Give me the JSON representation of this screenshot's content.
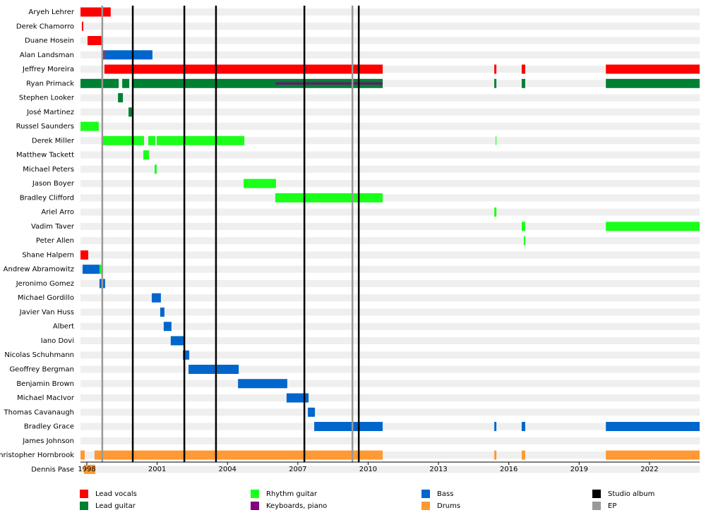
{
  "chart_data": {
    "type": "timeline",
    "categories": [
      "Aryeh Lehrer",
      "Derek Chamorro",
      "Duane Hosein",
      "Alan Landsman",
      "Jeffrey Moreira",
      "Ryan Primack",
      "Stephen Looker",
      "José Martinez",
      "Russel Saunders",
      "Derek Miller",
      "Matthew Tackett",
      "Michael Peters",
      "Jason Boyer",
      "Bradley Clifford",
      "Ariel Arro",
      "Vadim Taver",
      "Peter Allen",
      "Shane Halpern",
      "Andrew Abramowitz",
      "Jeronimo Gomez",
      "Michael Gordillo",
      "Javier Van Huss",
      "Albert",
      "Iano Dovi",
      "Nicolas Schuhmann",
      "Geoffrey Bergman",
      "Benjamin Brown",
      "Michael MacIvor",
      "Thomas Cavanaugh",
      "Bradley Grace",
      "James Johnson",
      "Christopher Hornbrook",
      "Dennis Pase"
    ],
    "series": [
      {
        "name": "Lead vocals",
        "color": "#ff0000",
        "values": [
          [
            [
              1997.73,
              1999.02
            ]
          ],
          [
            [
              1997.79,
              1997.85
            ]
          ],
          [
            [
              1998.03,
              1998.69
            ]
          ],
          [
            [
              1998.66,
              1998.75
            ]
          ],
          [
            [
              1998.75,
              2010.62
            ],
            [
              2015.38,
              2015.47
            ],
            [
              2016.55,
              2016.7
            ],
            [
              2020.14,
              2024.14
            ]
          ],
          [],
          [],
          [],
          [],
          [],
          [],
          [],
          [],
          [],
          [],
          [],
          [],
          [
            [
              1997.73,
              1998.06
            ]
          ],
          [],
          [],
          [],
          [],
          [],
          [],
          [],
          [],
          [],
          [],
          [],
          [],
          [],
          [],
          []
        ]
      },
      {
        "name": "Lead guitar",
        "color": "#008033",
        "values": [
          [],
          [],
          [],
          [],
          [],
          [
            [
              1997.73,
              1999.36
            ],
            [
              1999.51,
              1999.81
            ],
            [
              1999.96,
              2010.62
            ],
            [
              2015.38,
              2015.47
            ],
            [
              2016.55,
              2016.7
            ],
            [
              2020.14,
              2024.14
            ]
          ],
          [
            [
              1999.33,
              1999.54
            ]
          ],
          [
            [
              1999.78,
              1999.96
            ]
          ],
          [],
          [],
          [],
          [],
          [],
          [],
          [],
          [],
          [],
          [],
          [],
          [],
          [],
          [],
          [],
          [],
          [],
          [],
          [],
          [],
          [],
          [],
          [],
          [],
          []
        ]
      },
      {
        "name": "Rhythm guitar",
        "color": "#1aff1a",
        "values": [
          [],
          [],
          [],
          [],
          [],
          [],
          [],
          [],
          [
            [
              1997.73,
              1998.51
            ]
          ],
          [
            [
              1998.66,
              2000.44
            ],
            [
              2000.62,
              2000.92
            ],
            [
              2000.98,
              2004.72
            ],
            [
              2015.44,
              2015.47
            ]
          ],
          [
            [
              2000.41,
              2000.65
            ]
          ],
          [
            [
              2000.89,
              2000.98
            ]
          ],
          [
            [
              2004.69,
              2006.07
            ]
          ],
          [
            [
              2006.04,
              2010.62
            ]
          ],
          [
            [
              2015.38,
              2015.47
            ]
          ],
          [
            [
              2016.55,
              2016.7
            ],
            [
              2020.14,
              2024.14
            ]
          ],
          [
            [
              2016.64,
              2016.7
            ]
          ],
          [],
          [
            [
              1998.54,
              1998.69
            ]
          ],
          [],
          [],
          [],
          [],
          [],
          [],
          [],
          [],
          [],
          [],
          [],
          [],
          [],
          []
        ]
      },
      {
        "name": "Keyboards, piano",
        "color": "#800080",
        "thin": true,
        "values": [
          [],
          [],
          [],
          [],
          [],
          [
            [
              2006.04,
              2010.62
            ]
          ],
          [],
          [],
          [],
          [],
          [],
          [],
          [],
          [],
          [],
          [],
          [],
          [],
          [],
          [],
          [],
          [],
          [],
          [],
          [],
          [],
          [],
          [],
          [],
          [],
          [],
          [],
          []
        ]
      },
      {
        "name": "Bass",
        "color": "#0066cc",
        "values": [
          [],
          [],
          [],
          [
            [
              1998.75,
              2000.8
            ]
          ],
          [],
          [],
          [],
          [],
          [],
          [],
          [],
          [],
          [],
          [],
          [],
          [],
          [],
          [],
          [
            [
              1997.82,
              1998.54
            ]
          ],
          [
            [
              1998.54,
              1998.78
            ]
          ],
          [
            [
              2000.77,
              2001.16
            ]
          ],
          [
            [
              2001.13,
              2001.31
            ]
          ],
          [
            [
              2001.28,
              2001.61
            ]
          ],
          [
            [
              2001.58,
              2002.16
            ]
          ],
          [
            [
              2002.1,
              2002.37
            ]
          ],
          [
            [
              2002.34,
              2004.48
            ]
          ],
          [
            [
              2004.45,
              2006.55
            ]
          ],
          [
            [
              2006.52,
              2007.46
            ]
          ],
          [
            [
              2007.43,
              2007.73
            ]
          ],
          [
            [
              2007.7,
              2010.62
            ],
            [
              2015.38,
              2015.47
            ],
            [
              2016.55,
              2016.7
            ],
            [
              2020.14,
              2024.14
            ]
          ],
          [],
          [],
          []
        ]
      },
      {
        "name": "Drums",
        "color": "#ff9933",
        "values": [
          [],
          [],
          [],
          [],
          [],
          [],
          [],
          [],
          [],
          [],
          [],
          [],
          [],
          [],
          [],
          [],
          [],
          [],
          [],
          [],
          [],
          [],
          [],
          [],
          [],
          [],
          [],
          [],
          [],
          [],
          [],
          [
            [
              1997.73,
              1997.91
            ],
            [
              1998.33,
              2010.62
            ],
            [
              2015.38,
              2015.47
            ],
            [
              2016.55,
              2016.7
            ],
            [
              2020.14,
              2024.14
            ]
          ],
          [
            [
              1997.88,
              1998.36
            ]
          ]
        ]
      }
    ],
    "markers": [
      {
        "name": "Studio album",
        "color": "#000000",
        "x": [
          1999.96,
          2002.16,
          2003.51,
          2007.28,
          2009.6
        ]
      },
      {
        "name": "EP",
        "color": "#999999",
        "x": [
          1998.66,
          2009.33
        ]
      }
    ],
    "xlim": [
      1997.73,
      2024.14
    ],
    "xticks": [
      1998,
      2001,
      2004,
      2007,
      2010,
      2013,
      2016,
      2019,
      2022
    ]
  }
}
